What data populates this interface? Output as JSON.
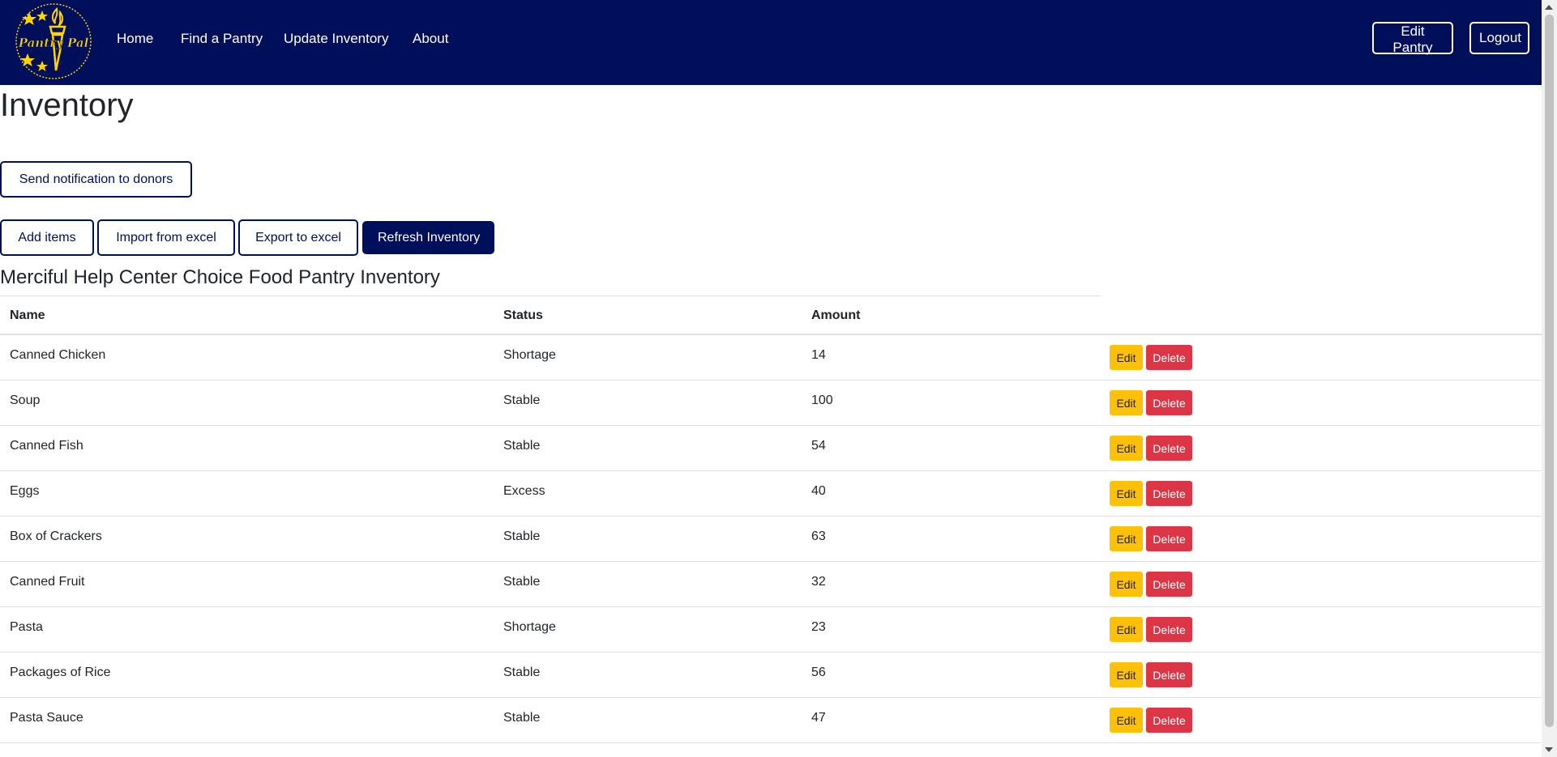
{
  "navbar": {
    "logo_text": "Pantry Pal",
    "links": [
      "Home",
      "Find a Pantry",
      "Update Inventory",
      "About"
    ],
    "edit_pantry": "Edit Pantry",
    "logout": "Logout",
    "background_color": "#000f5a",
    "logo_color": "#ffd400"
  },
  "page": {
    "title": "Inventory",
    "send_notification": "Send notification to donors",
    "add_items": "Add items",
    "import_excel": "Import from excel",
    "export_excel": "Export to excel",
    "refresh": "Refresh Inventory",
    "pantry_title": "Merciful Help Center Choice Food Pantry Inventory"
  },
  "table": {
    "headers": [
      "Name",
      "Status",
      "Amount"
    ],
    "edit_label": "Edit",
    "delete_label": "Delete",
    "rows": [
      {
        "name": "Canned Chicken",
        "status": "Shortage",
        "amount": "14"
      },
      {
        "name": "Soup",
        "status": "Stable",
        "amount": "100"
      },
      {
        "name": "Canned Fish",
        "status": "Stable",
        "amount": "54"
      },
      {
        "name": "Eggs",
        "status": "Excess",
        "amount": "40"
      },
      {
        "name": "Box of Crackers",
        "status": "Stable",
        "amount": "63"
      },
      {
        "name": "Canned Fruit",
        "status": "Stable",
        "amount": "32"
      },
      {
        "name": "Pasta",
        "status": "Shortage",
        "amount": "23"
      },
      {
        "name": "Packages of Rice",
        "status": "Stable",
        "amount": "56"
      },
      {
        "name": "Pasta Sauce",
        "status": "Stable",
        "amount": "47"
      }
    ]
  },
  "colors": {
    "primary": "#000f5a",
    "edit": "#ffc107",
    "delete": "#dc3545"
  }
}
